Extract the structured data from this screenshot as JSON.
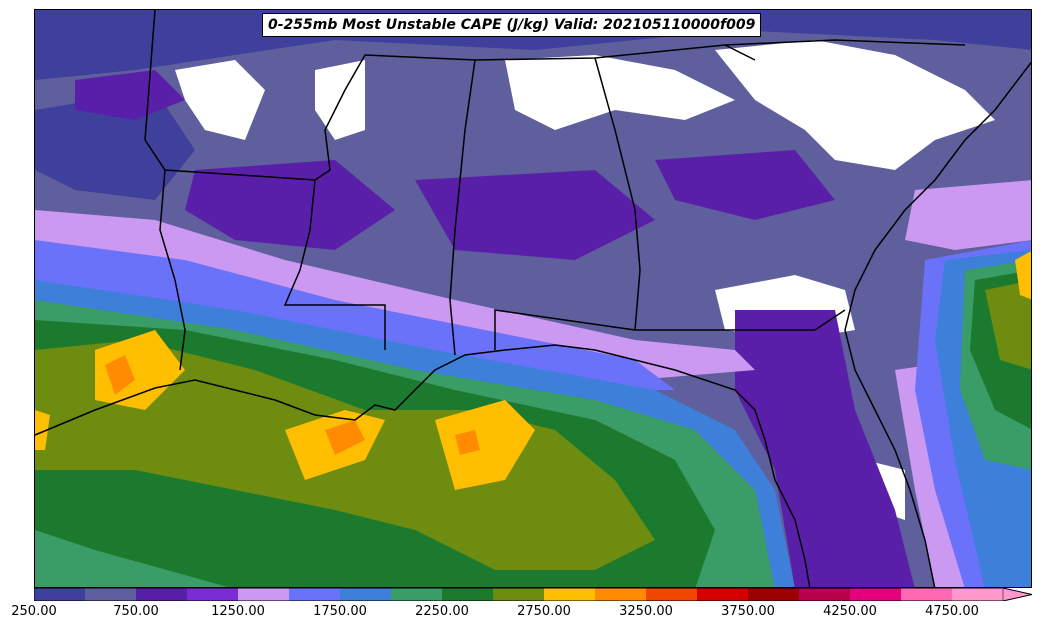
{
  "title": "0-255mb Most Unstable CAPE (J/kg) Valid: 202105110000f009",
  "colorbar": {
    "min": 250,
    "max": 5000,
    "step": 250,
    "extend": "max",
    "colors": [
      "#3f3f9c",
      "#5f5f9e",
      "#5a1fa8",
      "#7b2dd4",
      "#cc99f2",
      "#6b72fa",
      "#3d7fd9",
      "#3a9c66",
      "#1b7a2e",
      "#6e8c0f",
      "#ffbf00",
      "#ff8c00",
      "#ef4600",
      "#d60000",
      "#9c0000",
      "#b8004d",
      "#e6007d",
      "#ff69b4",
      "#ff99cc"
    ],
    "tick_labels": [
      "250.00",
      "750.00",
      "1250.00",
      "1750.00",
      "2250.00",
      "2750.00",
      "3250.00",
      "3750.00",
      "4250.00",
      "4750.00"
    ]
  },
  "map": {
    "background": "#ffffff",
    "boundary_color": "#000000"
  }
}
